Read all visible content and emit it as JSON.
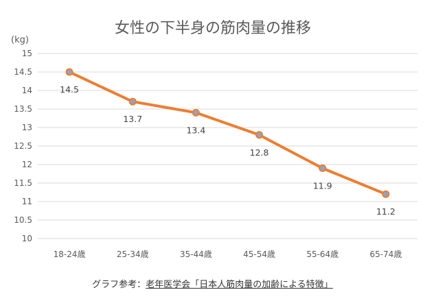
{
  "chart_data": {
    "type": "line",
    "title": "女性の下半身の筋肉量の推移",
    "unit_label": "(kg)",
    "categories": [
      "18-24歳",
      "25-34歳",
      "35-44歳",
      "45-54歳",
      "55-64歳",
      "65-74歳"
    ],
    "values": [
      14.5,
      13.7,
      13.4,
      12.8,
      11.9,
      11.2
    ],
    "data_labels": [
      "14.5",
      "13.7",
      "13.4",
      "12.8",
      "11.9",
      "11.2"
    ],
    "y_ticks": [
      "15",
      "14.5",
      "14",
      "13.5",
      "13",
      "12.5",
      "12",
      "11.5",
      "11",
      "10.5",
      "10"
    ],
    "ylim": [
      10,
      15
    ],
    "grid": true,
    "legend": "none",
    "colors": {
      "line": "#ED7D31",
      "marker_fill": "#8FA4C9",
      "marker_edge": "#ED7D31"
    }
  },
  "caption": {
    "prefix": "グラフ参考：",
    "link_text": "老年医学会「日本人筋肉量の加齢による特徴」"
  }
}
